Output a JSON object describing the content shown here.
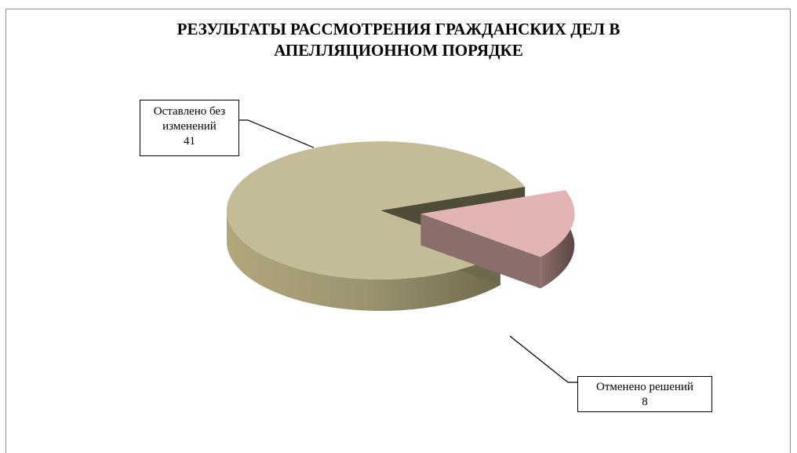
{
  "chart_data": {
    "type": "pie",
    "style": "3d-exploded",
    "title_lines": [
      "РЕЗУЛЬТАТЫ РАССМОТРЕНИЯ ГРАЖДАНСКИХ ДЕЛ В",
      "АПЕЛЛЯЦИОННОМ ПОРЯДКЕ"
    ],
    "categories": [
      "Оставлено без изменений",
      "Отменено решений"
    ],
    "values": [
      41,
      8
    ],
    "labels": [
      {
        "line1": "Оставлено без",
        "line2": "изменений",
        "value": "41"
      },
      {
        "line1": "Отменено решений",
        "value": "8"
      }
    ],
    "colors": [
      "#c4bc98",
      "#e3b4b4"
    ],
    "legend": "none",
    "data_labels": "category-and-value-with-leader-lines"
  }
}
